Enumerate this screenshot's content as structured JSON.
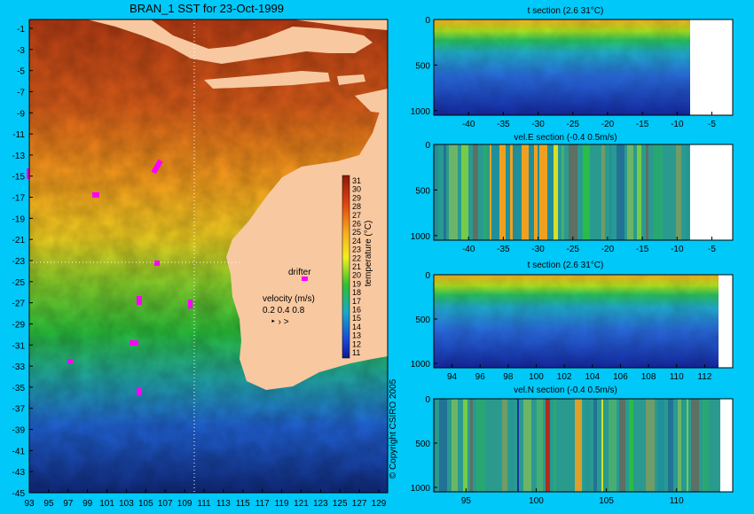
{
  "map": {
    "title": "BRAN_1 SST for 23-Oct-1999",
    "y_ticks": [
      -1,
      -3,
      -5,
      -7,
      -9,
      -11,
      -13,
      -15,
      -17,
      -19,
      -21,
      -23,
      -25,
      -27,
      -29,
      -31,
      -33,
      -35,
      -37,
      -39,
      -41,
      -43,
      -45
    ],
    "x_ticks": [
      93,
      95,
      97,
      99,
      101,
      103,
      105,
      107,
      109,
      111,
      113,
      115,
      117,
      119,
      121,
      123,
      125,
      127,
      129
    ],
    "colorbar_ticks": [
      31,
      30,
      29,
      28,
      27,
      26,
      25,
      24,
      23,
      22,
      21,
      20,
      19,
      18,
      17,
      16,
      15,
      14,
      13,
      12,
      11
    ],
    "colorbar_label": "temperature (°C)",
    "drifter_label": "drifter",
    "velocity_label": "velocity (m/s)",
    "velocity_scale": "0.2 0.4 0.8",
    "copyright": "© Copyright CSIRO 2005",
    "colors": {
      "warm": "#c84a1c",
      "mid": "#f0a020",
      "cool": "#28b838",
      "cold": "#1840c8",
      "land": "#f8c8a0",
      "drifter": "#ff00ff"
    }
  },
  "chart_data": [
    {
      "type": "heatmap",
      "title": "t section (2.6      31°C)",
      "x_ticks": [
        -40,
        -35,
        -30,
        -25,
        -20,
        -15,
        -10,
        -5
      ],
      "xlim": [
        -45,
        -2
      ],
      "y_ticks": [
        0,
        500,
        1000
      ],
      "ylim": [
        1050,
        0
      ]
    },
    {
      "type": "heatmap",
      "title": "vel.E section (-0.4      0.5m/s)",
      "x_ticks": [
        -40,
        -35,
        -30,
        -25,
        -20,
        -15,
        -10,
        -5
      ],
      "xlim": [
        -45,
        -2
      ],
      "y_ticks": [
        0,
        500,
        1000
      ],
      "ylim": [
        1050,
        0
      ]
    },
    {
      "type": "heatmap",
      "title": "t section (2.6      31°C)",
      "x_ticks": [
        94,
        96,
        98,
        100,
        102,
        104,
        106,
        108,
        110,
        112
      ],
      "xlim": [
        92.7,
        114
      ],
      "y_ticks": [
        0,
        500,
        1000
      ],
      "ylim": [
        1050,
        0
      ]
    },
    {
      "type": "heatmap",
      "title": "vel.N section (-0.4      0.5m/s)",
      "x_ticks": [
        95,
        100,
        105,
        110
      ],
      "xlim": [
        92.7,
        114
      ],
      "y_ticks": [
        0,
        500,
        1000
      ],
      "ylim": [
        1050,
        0
      ]
    }
  ]
}
